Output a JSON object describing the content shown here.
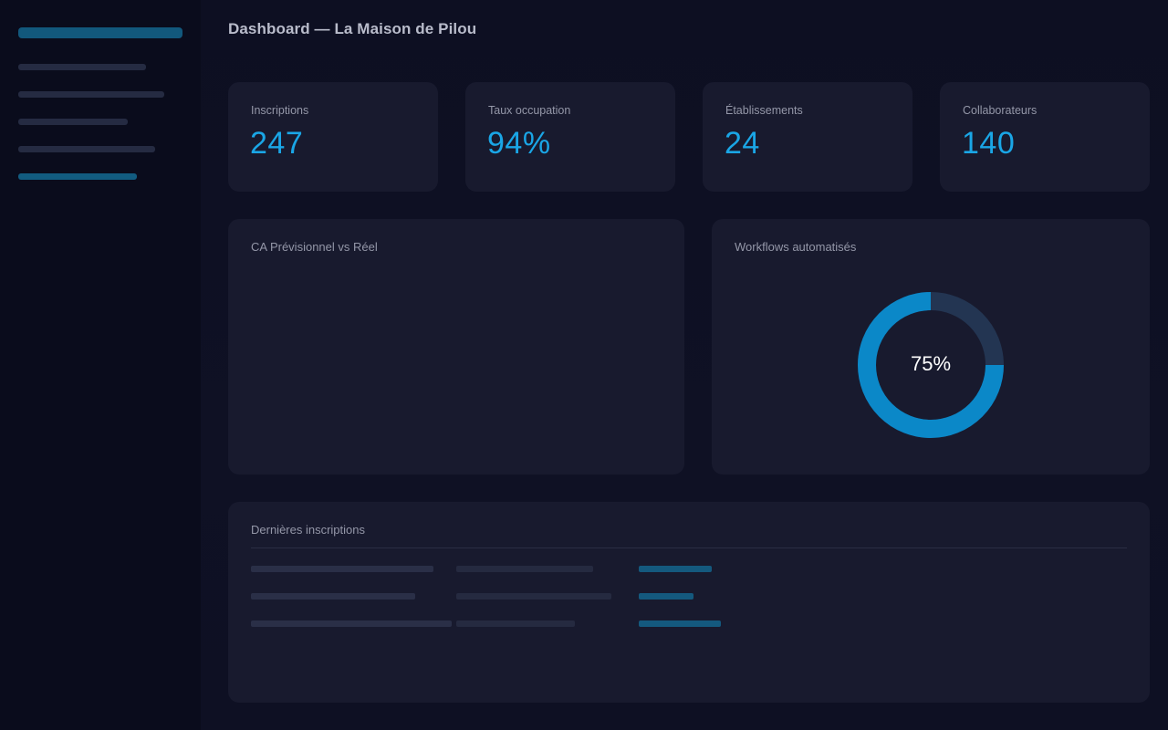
{
  "header": {
    "title": "Dashboard — La Maison de Pilou"
  },
  "kpis": [
    {
      "label": "Inscriptions",
      "value": "247"
    },
    {
      "label": "Taux occupation",
      "value": "94%"
    },
    {
      "label": "Établissements",
      "value": "24"
    },
    {
      "label": "Collaborateurs",
      "value": "140"
    }
  ],
  "revenue_chart": {
    "title": "CA Prévisionnel vs Réel"
  },
  "workflows": {
    "title": "Workflows automatisés",
    "percent": 75,
    "label": "75%"
  },
  "latest_signups": {
    "title": "Dernières inscriptions"
  },
  "colors": {
    "accent": "#1aa6e6",
    "donut_fill": "#0b88c8",
    "donut_track": "#233552",
    "card": "#181a2e",
    "background": "#0c0e1f"
  }
}
